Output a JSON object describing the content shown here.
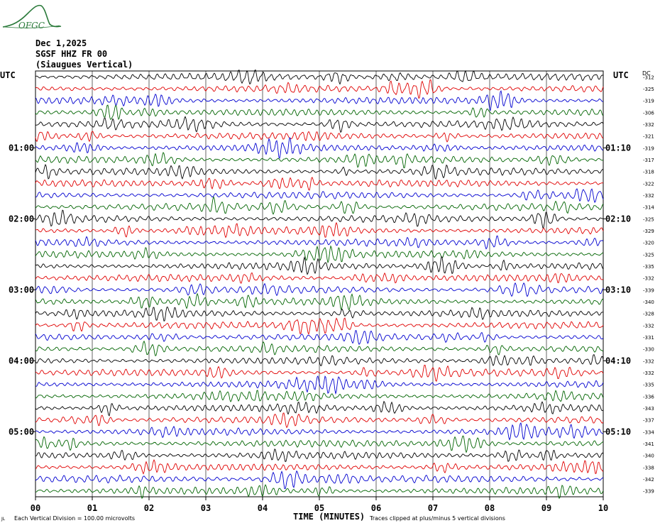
{
  "logo": {
    "text": "OFGC"
  },
  "header": {
    "date": "Dec 1,2025",
    "station": "SGSF HHZ FR 00",
    "site": "(Siaugues Vertical)"
  },
  "left_axis_label": "UTC",
  "right_axis_label": "UTC",
  "dc_label": "DC",
  "left_time_labels": [
    "01:00",
    "02:00",
    "03:00",
    "04:00",
    "05:00"
  ],
  "right_time_labels": [
    "01:10",
    "02:10",
    "03:10",
    "04:10",
    "05:10"
  ],
  "bottom_left_mark": "JL",
  "footer": {
    "scale_note": "Each Vertical Division =  100.00 microvolts",
    "xlabel": "TIME (MINUTES)",
    "clip_note": "Traces clipped at plus/minus 5 vertical divisions"
  },
  "colors": {
    "trace_cycle": [
      "#000000",
      "#e00000",
      "#0000d0",
      "#006400"
    ],
    "grid": "#000000",
    "logo": "#2a7a3a"
  },
  "chart_data": {
    "type": "line",
    "xlabel": "TIME (MINUTES)",
    "x_tick_labels": [
      "00",
      "01",
      "02",
      "03",
      "04",
      "05",
      "06",
      "07",
      "08",
      "09",
      "10"
    ],
    "xlim": [
      0,
      10
    ],
    "row_count": 36,
    "row_minutes": 10,
    "dc_offsets": [
      -312,
      -325,
      -319,
      -306,
      -332,
      -321,
      -319,
      -317,
      -318,
      -322,
      -332,
      -314,
      -325,
      -329,
      -320,
      -325,
      -335,
      -332,
      -339,
      -340,
      -328,
      -332,
      -331,
      -330,
      -332,
      -332,
      -335,
      -336,
      -343,
      -337,
      -334,
      -341,
      -340,
      -338,
      -342,
      -339
    ]
  }
}
